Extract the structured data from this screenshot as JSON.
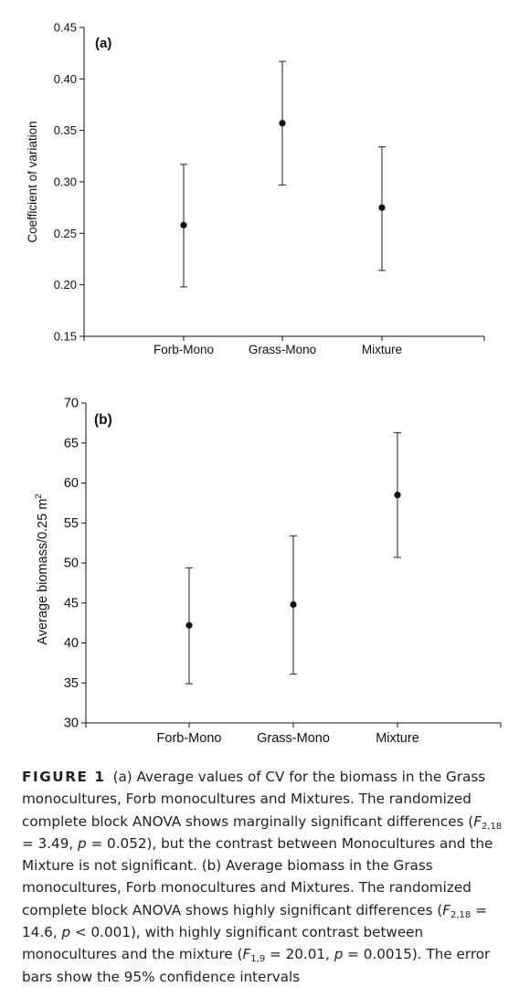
{
  "chart_data": [
    {
      "type": "scatter",
      "panel_label": "(a)",
      "categories": [
        "Forb-Mono",
        "Grass-Mono",
        "Mixture"
      ],
      "values": [
        0.258,
        0.357,
        0.275
      ],
      "ci_low": [
        0.198,
        0.297,
        0.214
      ],
      "ci_high": [
        0.317,
        0.417,
        0.334
      ],
      "ylabel": "Coefficient of variation",
      "ylim": [
        0.15,
        0.45
      ],
      "yticks": [
        "0.15",
        "0.20",
        "0.25",
        "0.30",
        "0.35",
        "0.40",
        "0.45"
      ]
    },
    {
      "type": "scatter",
      "panel_label": "(b)",
      "categories": [
        "Forb-Mono",
        "Grass-Mono",
        "Mixture"
      ],
      "values": [
        42.2,
        44.8,
        58.5
      ],
      "ci_low": [
        34.9,
        36.1,
        50.7
      ],
      "ci_high": [
        49.4,
        53.4,
        66.3
      ],
      "ylabel_main": "Average biomass/0.25 m",
      "ylabel_sup": "2",
      "ylim": [
        30,
        70
      ],
      "yticks": [
        "30",
        "35",
        "40",
        "45",
        "50",
        "55",
        "60",
        "65",
        "70"
      ]
    }
  ],
  "caption": {
    "lead": "FIGURE 1",
    "t1": "(a) Average values of CV for the biomass in the Grass monocultures, Forb monocultures and Mixtures. The randomized complete block ANOVA shows marginally significant differences (",
    "f1": "F",
    "s1": "2,18",
    "t2": " = 3.49, ",
    "p1": "p",
    "t3": " = 0.052), but the contrast between Monocultures and the Mixture is not significant. (b) Average biomass in the Grass monocultures, Forb monocultures and Mixtures. The randomized complete block ANOVA shows highly significant differences (",
    "f2": "F",
    "s2": "2,18",
    "t4": " = 14.6, ",
    "p2": "p",
    "t5": " < 0.001), with highly significant contrast between monocultures and the mixture (",
    "f3": "F",
    "s3": "1,9",
    "t6": " = 20.01, ",
    "p3": "p",
    "t7": " = 0.0015). The error bars show the 95% confidence intervals"
  }
}
